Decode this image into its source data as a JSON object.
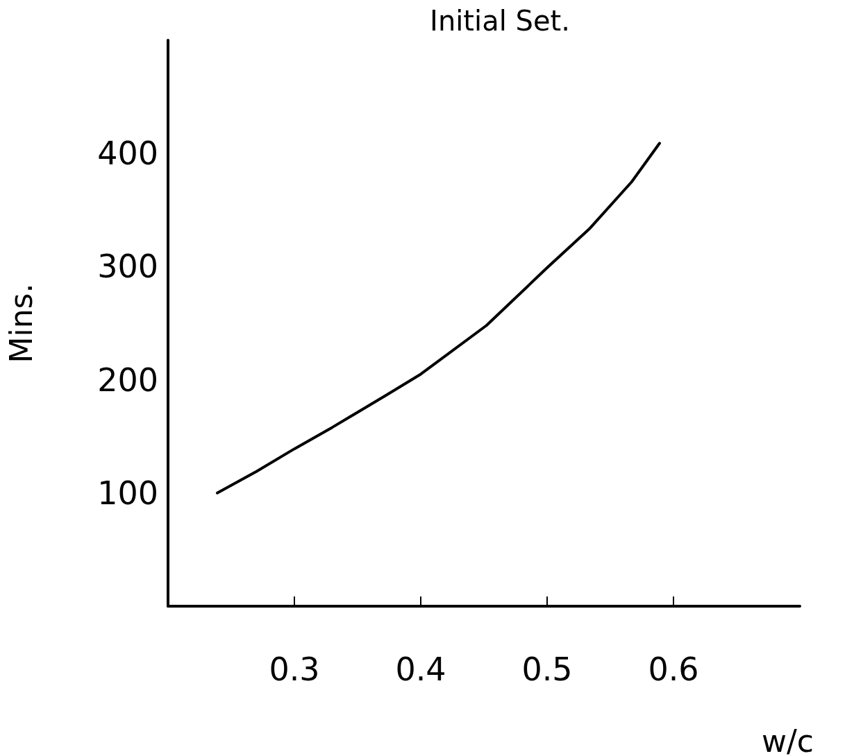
{
  "chart_data": {
    "type": "line",
    "title": "Initial Set.",
    "xlabel": "w/c",
    "ylabel": "Mins.",
    "x": [
      0.239,
      0.27,
      0.3,
      0.33,
      0.372,
      0.4,
      0.452,
      0.5,
      0.534,
      0.567,
      0.589
    ],
    "series": [
      {
        "color": "#000000",
        "values": [
          100,
          119,
          139,
          158,
          186,
          205,
          248,
          299,
          334,
          375,
          409
        ]
      }
    ],
    "xlim": [
      0.2,
      0.7
    ],
    "xticks": [
      0.3,
      0.4,
      0.5,
      0.6
    ],
    "ylim": [
      0,
      500
    ],
    "yticks": [
      100,
      200,
      300,
      400
    ],
    "grid": false,
    "marker": "none",
    "line_style": "solid"
  }
}
